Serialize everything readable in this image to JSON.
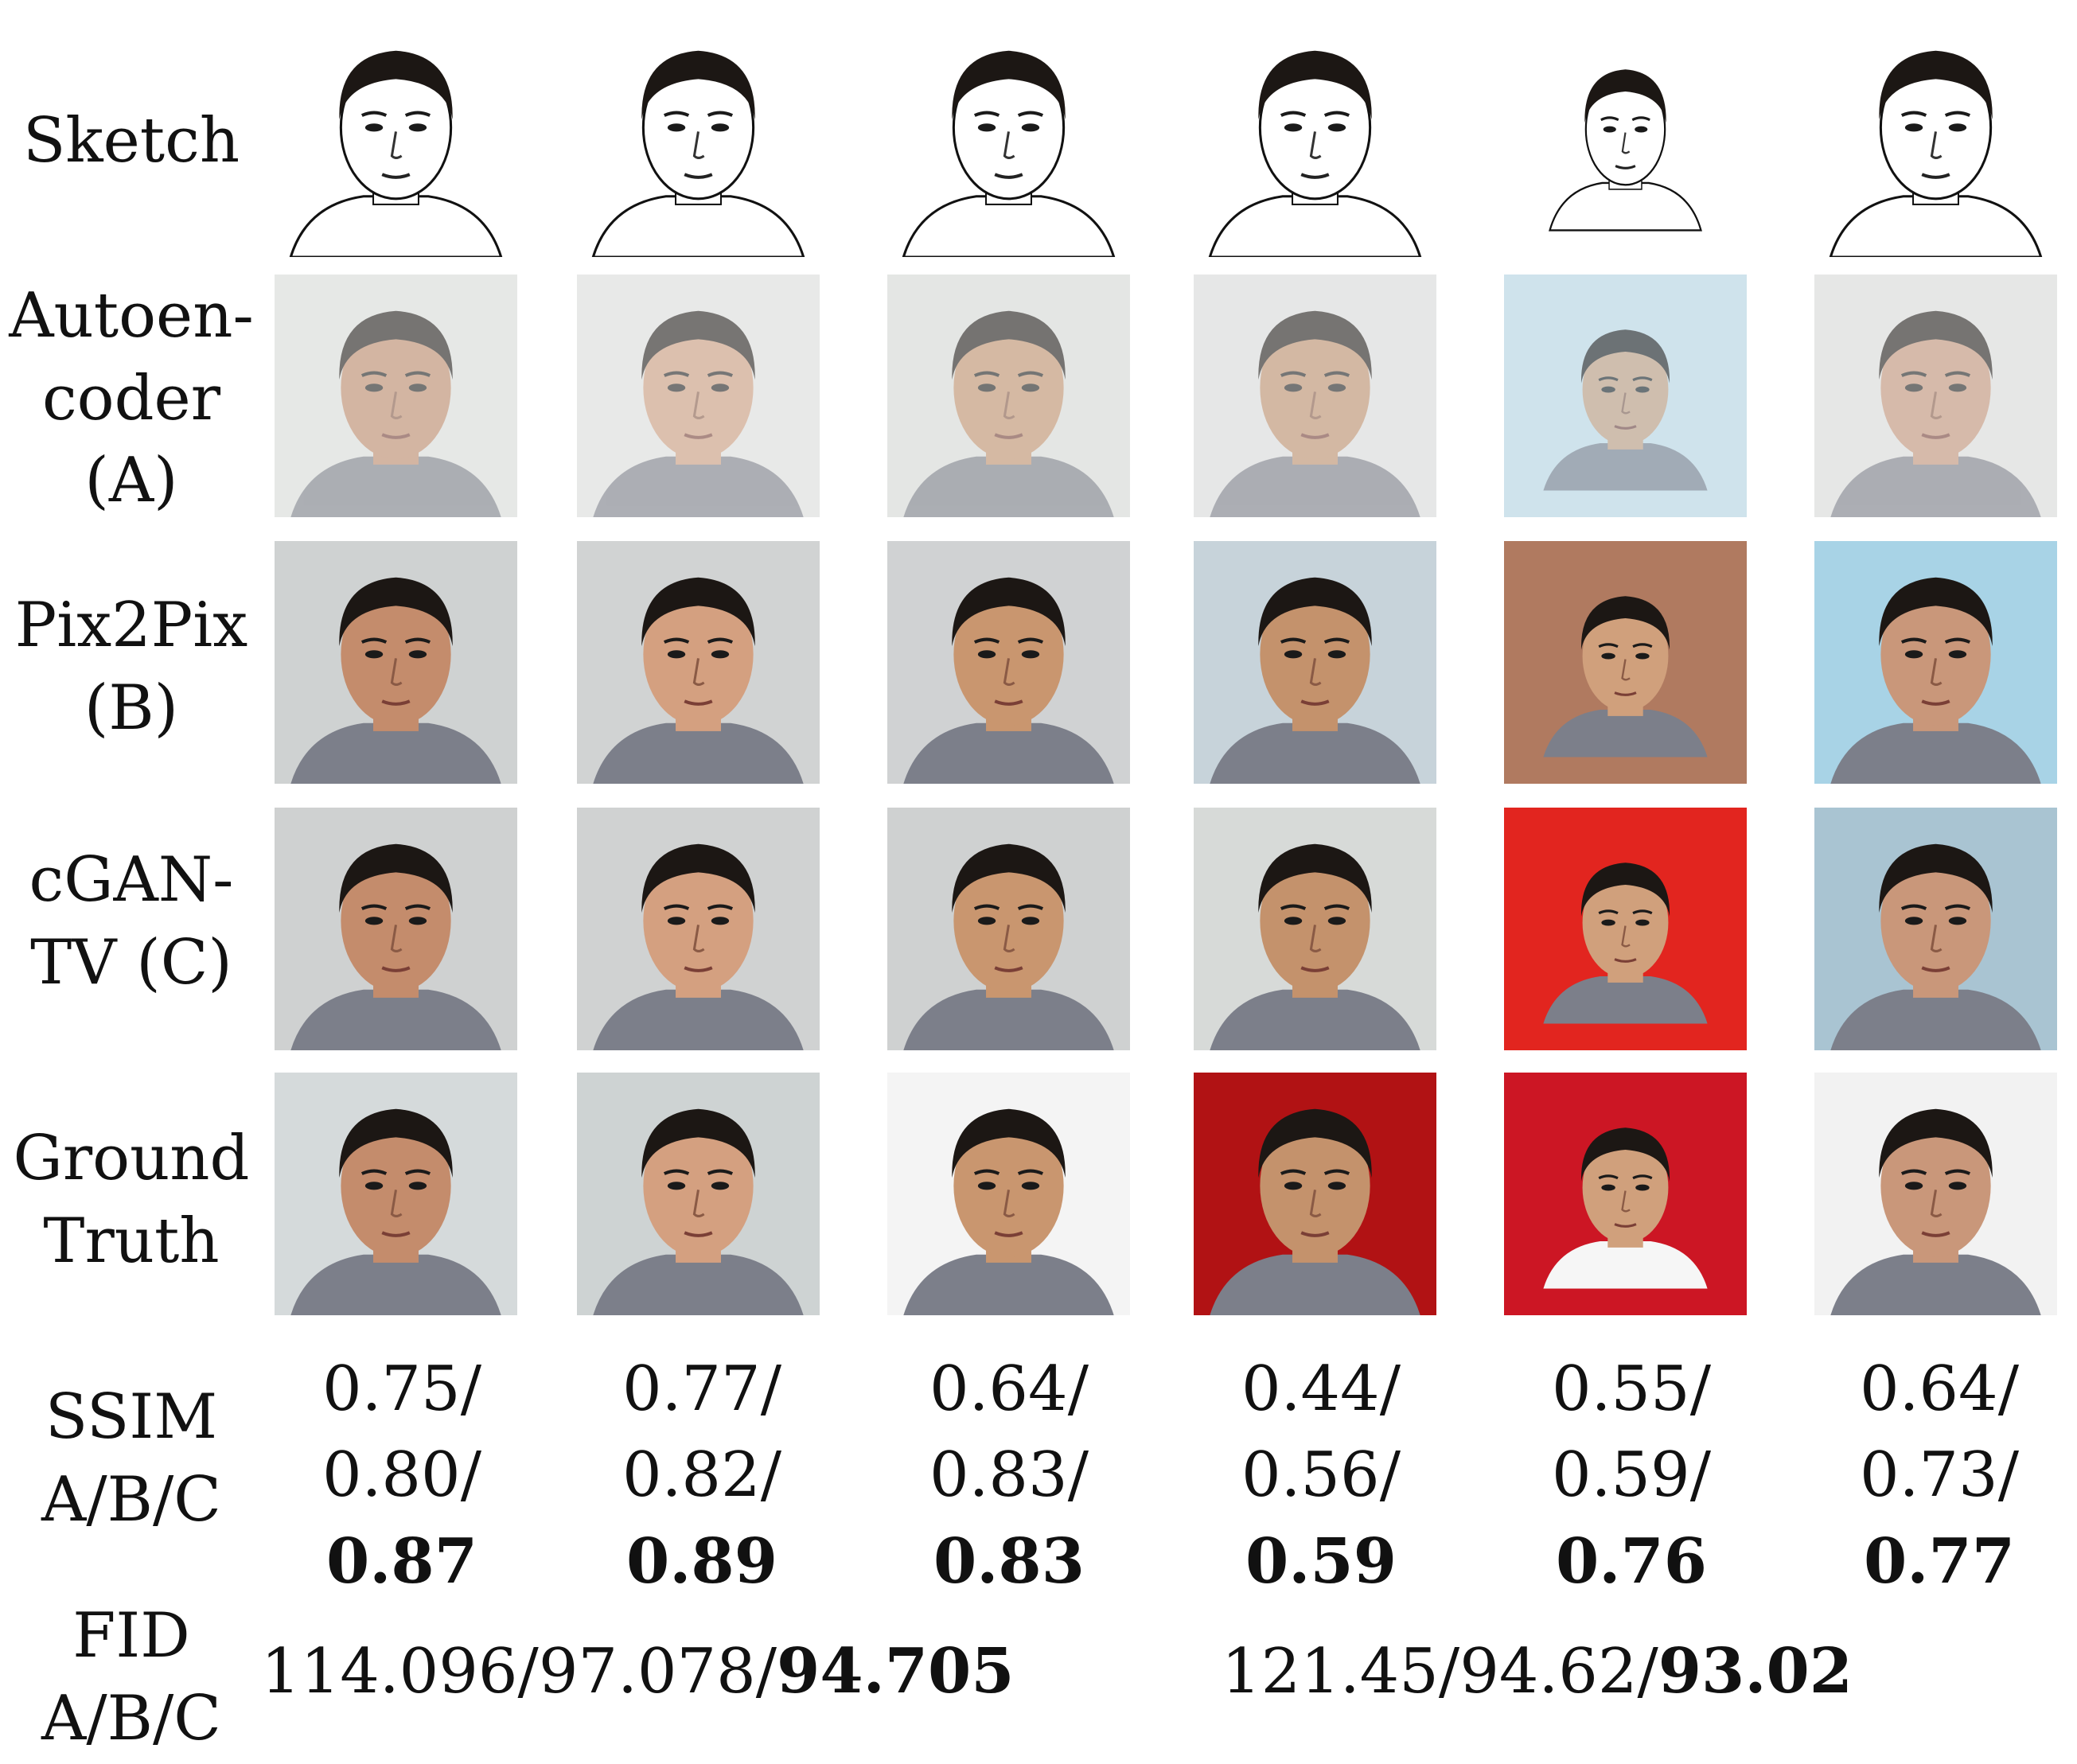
{
  "rows": [
    {
      "id": "sketch",
      "label": [
        "Sketch"
      ]
    },
    {
      "id": "autoencoder",
      "label": [
        "Autoen-",
        "coder",
        "(A)"
      ]
    },
    {
      "id": "pix2pix",
      "label": [
        "Pix2Pix",
        "(B)"
      ]
    },
    {
      "id": "cgan",
      "label": [
        "cGAN-",
        "TV (C)"
      ]
    },
    {
      "id": "ground",
      "label": [
        "Ground",
        "Truth"
      ]
    }
  ],
  "ssim_label": [
    "SSIM",
    "A/B/C"
  ],
  "fid_label": [
    "FID",
    "A/B/C"
  ],
  "ssim": [
    {
      "a": "0.75/",
      "b": "0.80/",
      "c": "0.87"
    },
    {
      "a": "0.77/",
      "b": "0.82/",
      "c": "0.89"
    },
    {
      "a": "0.64/",
      "b": "0.83/",
      "c": "0.83"
    },
    {
      "a": "0.44/",
      "b": "0.56/",
      "c": "0.59"
    },
    {
      "a": "0.55/",
      "b": "0.59/",
      "c": "0.76"
    },
    {
      "a": "0.64/",
      "b": "0.73/",
      "c": "0.77"
    }
  ],
  "fid": [
    {
      "plain": "114.096/97.078/",
      "best": "94.705"
    },
    {
      "plain": "121.45/94.62/",
      "best": "93.02"
    }
  ],
  "colors": {
    "autoencoder_bg": [
      "#e6e8e6",
      "#e8e9e8",
      "#e4e6e4",
      "#e6e7e7",
      "#cfe3ec",
      "#e6e7e6"
    ],
    "pix2pix_bg": [
      "#cfd2d2",
      "#d1d3d3",
      "#d0d2d3",
      "#c7d3da",
      "#b07a60",
      "#a8d3e6"
    ],
    "cgan_bg": [
      "#cfd1d1",
      "#d0d2d2",
      "#cfd1d1",
      "#d7dad8",
      "#e2251f",
      "#a9c4d2"
    ],
    "ground_bg": [
      "#d5dadb",
      "#ced3d3",
      "#f4f4f4",
      "#b11214",
      "#cc1624",
      "#f2f2f2"
    ],
    "skin": [
      "#c48c6c",
      "#d4a080",
      "#c9966f",
      "#c4926c",
      "#d0a07c",
      "#c9977a"
    ],
    "hair": "#1c1714"
  }
}
